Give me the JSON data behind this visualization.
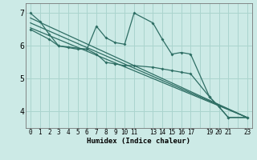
{
  "bg_color": "#cceae6",
  "line_color": "#2e6e64",
  "grid_color": "#aad4ce",
  "xlabel": "Humidex (Indice chaleur)",
  "xlim": [
    -0.5,
    23.5
  ],
  "ylim": [
    3.5,
    7.3
  ],
  "yticks": [
    4,
    5,
    6,
    7
  ],
  "xticks_pos": [
    0,
    1,
    2,
    3,
    4,
    5,
    6,
    7,
    8,
    9,
    10,
    11,
    12,
    13,
    14,
    15,
    16,
    17,
    18,
    19,
    20,
    21,
    22,
    23
  ],
  "xtick_labels": [
    "0",
    "1",
    "2",
    "3",
    "4",
    "5",
    "6",
    "7",
    "8",
    "9",
    "10",
    "11",
    "",
    "13",
    "14",
    "15",
    "16",
    "17",
    "",
    "19",
    "20",
    "21",
    "",
    "23"
  ],
  "series1_x": [
    0,
    1,
    2,
    3,
    6,
    7,
    8,
    9,
    10,
    11,
    13,
    14,
    15,
    16,
    17,
    19,
    20,
    21,
    23
  ],
  "series1_y": [
    7.0,
    6.75,
    6.35,
    6.0,
    5.9,
    6.6,
    6.25,
    6.1,
    6.05,
    7.0,
    6.7,
    6.2,
    5.75,
    5.8,
    5.75,
    4.45,
    4.15,
    3.82,
    3.82
  ],
  "series2_x": [
    0,
    2,
    3,
    4,
    5,
    6,
    7,
    8,
    9,
    10,
    11,
    13,
    14,
    15,
    16,
    17,
    19,
    20,
    21,
    23
  ],
  "series2_y": [
    6.5,
    6.2,
    6.0,
    5.95,
    5.9,
    5.9,
    5.75,
    5.5,
    5.45,
    5.4,
    5.4,
    5.35,
    5.3,
    5.25,
    5.2,
    5.15,
    4.45,
    4.15,
    3.82,
    3.82
  ],
  "line3_x": [
    0,
    23
  ],
  "line3_y": [
    6.85,
    3.82
  ],
  "line4_x": [
    0,
    23
  ],
  "line4_y": [
    6.7,
    3.82
  ],
  "line5_x": [
    0,
    23
  ],
  "line5_y": [
    6.55,
    3.82
  ]
}
